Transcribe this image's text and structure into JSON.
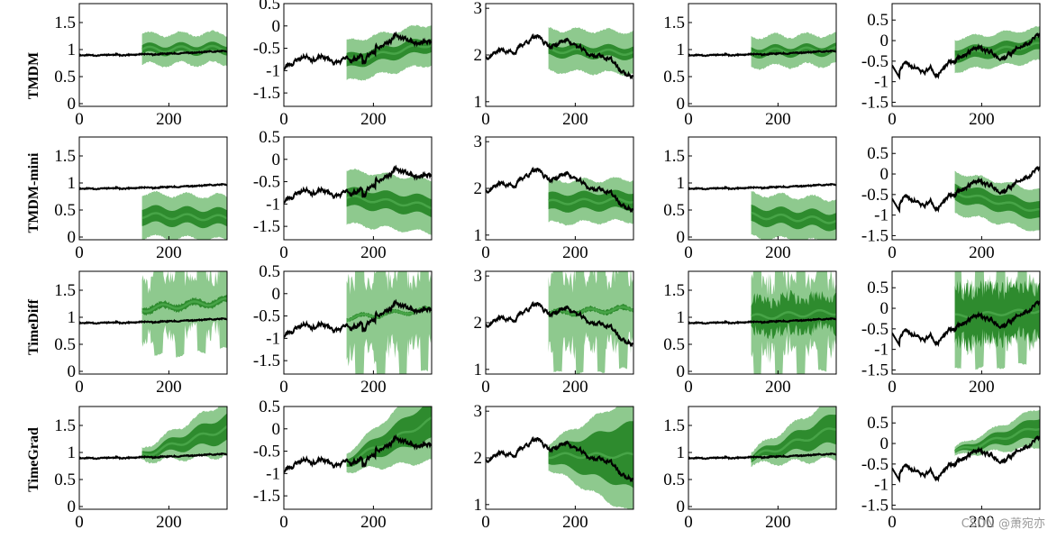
{
  "figure": {
    "rows": [
      "TMDM",
      "TMDM-mini",
      "TimeDiff",
      "TimeGrad"
    ],
    "watermark": "CSDN @萧宛亦"
  },
  "colors": {
    "truth": "#000000",
    "median": "#47a447",
    "band_50": "#2e8b2e",
    "band_90": "#8ec98e"
  },
  "chart_data": [
    {
      "type": "line",
      "row": "TMDM",
      "col": 1,
      "xlim": [
        0,
        330
      ],
      "ylim": [
        -0.05,
        1.85
      ],
      "yticks": [
        0,
        0.5,
        1,
        1.5
      ],
      "xticks": [
        0,
        200
      ],
      "forecast_start": 140,
      "truth_kind": "A",
      "band_kind": "sym",
      "center": [
        1.0,
        1.02
      ],
      "inner": 0.08,
      "outer": 0.28
    },
    {
      "type": "line",
      "row": "TMDM",
      "col": 2,
      "xlim": [
        0,
        330
      ],
      "ylim": [
        -1.8,
        0.5
      ],
      "yticks": [
        -1.5,
        -1,
        -0.5,
        0,
        0.5
      ],
      "xticks": [
        0,
        200
      ],
      "forecast_start": 140,
      "truth_kind": "B",
      "band_kind": "sym",
      "center": [
        -0.8,
        -0.4
      ],
      "inner": 0.15,
      "outer": 0.45
    },
    {
      "type": "line",
      "row": "TMDM",
      "col": 3,
      "xlim": [
        0,
        330
      ],
      "ylim": [
        0.9,
        3.1
      ],
      "yticks": [
        1,
        2,
        3
      ],
      "xticks": [
        0,
        200
      ],
      "forecast_start": 140,
      "truth_kind": "C",
      "band_kind": "sym",
      "center": [
        2.1,
        2.05
      ],
      "inner": 0.12,
      "outer": 0.45
    },
    {
      "type": "line",
      "row": "TMDM",
      "col": 4,
      "xlim": [
        0,
        330
      ],
      "ylim": [
        -0.05,
        1.85
      ],
      "yticks": [
        0,
        0.5,
        1,
        1.5
      ],
      "xticks": [
        0,
        200
      ],
      "forecast_start": 140,
      "truth_kind": "A",
      "band_kind": "sym",
      "center": [
        0.96,
        1.0
      ],
      "inner": 0.08,
      "outer": 0.28
    },
    {
      "type": "line",
      "row": "TMDM",
      "col": 5,
      "xlim": [
        0,
        330
      ],
      "ylim": [
        -1.6,
        0.9
      ],
      "yticks": [
        -1.5,
        -1,
        -0.5,
        0,
        0.5
      ],
      "xticks": [
        0,
        200
      ],
      "forecast_start": 140,
      "truth_kind": "D",
      "band_kind": "sym",
      "center": [
        -0.35,
        -0.1
      ],
      "inner": 0.15,
      "outer": 0.4
    },
    {
      "type": "line",
      "row": "TMDM-mini",
      "col": 1,
      "xlim": [
        0,
        330
      ],
      "ylim": [
        -0.05,
        1.85
      ],
      "yticks": [
        0,
        0.5,
        1,
        1.5
      ],
      "xticks": [
        0,
        200
      ],
      "forecast_start": 140,
      "truth_kind": "A",
      "band_kind": "sym",
      "center": [
        0.4,
        0.35
      ],
      "inner": 0.15,
      "outer": 0.4
    },
    {
      "type": "line",
      "row": "TMDM-mini",
      "col": 2,
      "xlim": [
        0,
        330
      ],
      "ylim": [
        -1.8,
        0.5
      ],
      "yticks": [
        -1.5,
        -1,
        -0.5,
        0,
        0.5
      ],
      "xticks": [
        0,
        200
      ],
      "forecast_start": 140,
      "truth_kind": "B",
      "band_kind": "sym",
      "center": [
        -0.85,
        -1.05
      ],
      "inner": 0.2,
      "outer": 0.6
    },
    {
      "type": "line",
      "row": "TMDM-mini",
      "col": 3,
      "xlim": [
        0,
        330
      ],
      "ylim": [
        0.9,
        3.1
      ],
      "yticks": [
        1,
        2,
        3
      ],
      "xticks": [
        0,
        200
      ],
      "forecast_start": 140,
      "truth_kind": "C",
      "band_kind": "sym",
      "center": [
        1.7,
        1.75
      ],
      "inner": 0.18,
      "outer": 0.45
    },
    {
      "type": "line",
      "row": "TMDM-mini",
      "col": 4,
      "xlim": [
        0,
        330
      ],
      "ylim": [
        -0.05,
        1.85
      ],
      "yticks": [
        0,
        0.5,
        1,
        1.5
      ],
      "xticks": [
        0,
        200
      ],
      "forecast_start": 140,
      "truth_kind": "A",
      "band_kind": "sym",
      "center": [
        0.4,
        0.3
      ],
      "inner": 0.15,
      "outer": 0.4
    },
    {
      "type": "line",
      "row": "TMDM-mini",
      "col": 5,
      "xlim": [
        0,
        330
      ],
      "ylim": [
        -1.6,
        0.9
      ],
      "yticks": [
        -1.5,
        -1,
        -0.5,
        0,
        0.5
      ],
      "xticks": [
        0,
        200
      ],
      "forecast_start": 140,
      "truth_kind": "D",
      "band_kind": "sym",
      "center": [
        -0.45,
        -0.9
      ],
      "inner": 0.2,
      "outer": 0.5
    },
    {
      "type": "line",
      "row": "TimeDiff",
      "col": 1,
      "xlim": [
        0,
        330
      ],
      "ylim": [
        -0.05,
        1.85
      ],
      "yticks": [
        0,
        0.5,
        1,
        1.5
      ],
      "xticks": [
        0,
        200
      ],
      "forecast_start": 140,
      "truth_kind": "A",
      "band_kind": "wild",
      "center": [
        1.15,
        1.3
      ],
      "inner": 0.06,
      "outer": 0.9
    },
    {
      "type": "line",
      "row": "TimeDiff",
      "col": 2,
      "xlim": [
        0,
        330
      ],
      "ylim": [
        -1.8,
        0.5
      ],
      "yticks": [
        -1.5,
        -1,
        -0.5,
        0,
        0.5
      ],
      "xticks": [
        0,
        200
      ],
      "forecast_start": 140,
      "truth_kind": "B",
      "band_kind": "wild",
      "center": [
        -0.55,
        -0.35
      ],
      "inner": 0.04,
      "outer": 1.4
    },
    {
      "type": "line",
      "row": "TimeDiff",
      "col": 3,
      "xlim": [
        0,
        330
      ],
      "ylim": [
        0.9,
        3.1
      ],
      "yticks": [
        1,
        2,
        3
      ],
      "xticks": [
        0,
        200
      ],
      "forecast_start": 140,
      "truth_kind": "C",
      "band_kind": "wild",
      "center": [
        2.2,
        2.3
      ],
      "inner": 0.05,
      "outer": 1.3
    },
    {
      "type": "line",
      "row": "TimeDiff",
      "col": 4,
      "xlim": [
        0,
        330
      ],
      "ylim": [
        -0.05,
        1.85
      ],
      "yticks": [
        0,
        0.5,
        1,
        1.5
      ],
      "xticks": [
        0,
        200
      ],
      "forecast_start": 140,
      "truth_kind": "A",
      "band_kind": "wild",
      "center": [
        1.0,
        1.1
      ],
      "inner": 0.3,
      "outer": 1.1
    },
    {
      "type": "line",
      "row": "TimeDiff",
      "col": 5,
      "xlim": [
        0,
        330
      ],
      "ylim": [
        -1.6,
        0.9
      ],
      "yticks": [
        -1.5,
        -1,
        -0.5,
        0,
        0.5
      ],
      "xticks": [
        0,
        200
      ],
      "forecast_start": 140,
      "truth_kind": "D",
      "band_kind": "wild",
      "center": [
        -0.2,
        -0.05
      ],
      "inner": 0.6,
      "outer": 1.3
    },
    {
      "type": "line",
      "row": "TimeGrad",
      "col": 1,
      "xlim": [
        0,
        330
      ],
      "ylim": [
        -0.05,
        1.85
      ],
      "yticks": [
        0,
        0.5,
        1,
        1.5
      ],
      "xticks": [
        0,
        200
      ],
      "forecast_start": 140,
      "truth_kind": "A",
      "band_kind": "fan",
      "center": [
        0.95,
        1.45
      ],
      "inner": 0.22,
      "outer": 0.45
    },
    {
      "type": "line",
      "row": "TimeGrad",
      "col": 2,
      "xlim": [
        0,
        330
      ],
      "ylim": [
        -1.8,
        0.5
      ],
      "yticks": [
        -1.5,
        -1,
        -0.5,
        0,
        0.5
      ],
      "xticks": [
        0,
        200
      ],
      "forecast_start": 140,
      "truth_kind": "B",
      "band_kind": "fan",
      "center": [
        -0.75,
        0.2
      ],
      "inner": 0.4,
      "outer": 0.8
    },
    {
      "type": "line",
      "row": "TimeGrad",
      "col": 3,
      "xlim": [
        0,
        330
      ],
      "ylim": [
        0.9,
        3.1
      ],
      "yticks": [
        1,
        2,
        3
      ],
      "xticks": [
        0,
        200
      ],
      "forecast_start": 140,
      "truth_kind": "C",
      "band_kind": "fan",
      "center": [
        2.05,
        2.05
      ],
      "inner": 0.65,
      "outer": 1.1
    },
    {
      "type": "line",
      "row": "TimeGrad",
      "col": 4,
      "xlim": [
        0,
        330
      ],
      "ylim": [
        -0.05,
        1.85
      ],
      "yticks": [
        0,
        0.5,
        1,
        1.5
      ],
      "xticks": [
        0,
        200
      ],
      "forecast_start": 140,
      "truth_kind": "A",
      "band_kind": "fan",
      "center": [
        0.9,
        1.45
      ],
      "inner": 0.25,
      "outer": 0.5
    },
    {
      "type": "line",
      "row": "TimeGrad",
      "col": 5,
      "xlim": [
        0,
        330
      ],
      "ylim": [
        -1.6,
        0.9
      ],
      "yticks": [
        -1.5,
        -1,
        -0.5,
        0,
        0.5
      ],
      "xticks": [
        0,
        200
      ],
      "forecast_start": 140,
      "truth_kind": "D",
      "band_kind": "fan",
      "center": [
        -0.2,
        0.4
      ],
      "inner": 0.22,
      "outer": 0.42
    }
  ]
}
